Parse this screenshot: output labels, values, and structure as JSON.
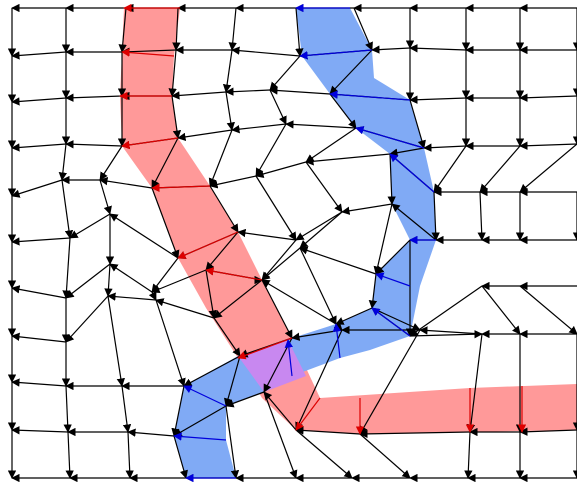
{
  "colors": {
    "background": "#ffffff",
    "edge": "#000000",
    "red_band_fill": "#ff9999",
    "red_band_edge": "#dd0000",
    "blue_band_fill": "#80aaf5",
    "blue_band_edge": "#0000dd",
    "overlap_fill": "#c888f0"
  },
  "diagram": {
    "kind": "directed mesh graph with two highlighted strips",
    "strips": [
      {
        "name": "red",
        "color_key": "red_band_fill"
      },
      {
        "name": "blue",
        "color_key": "blue_band_fill"
      }
    ],
    "overlap_cell": {
      "color_key": "overlap_fill"
    }
  }
}
